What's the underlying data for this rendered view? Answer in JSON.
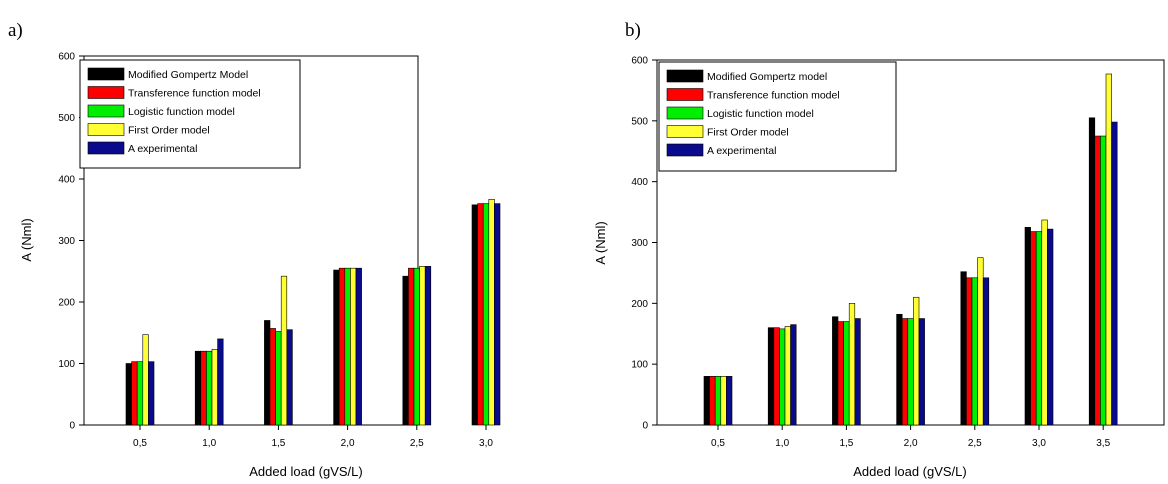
{
  "colors": {
    "series": [
      "#000000",
      "#ff0000",
      "#00ee00",
      "#ffff33",
      "#0a0a8c"
    ],
    "bar_stroke": "#000000"
  },
  "chart_data": [
    {
      "panel_label": "a)",
      "type": "bar",
      "xlabel": "Added load (gVS/L)",
      "ylabel": "A (Nml)",
      "ylim": [
        0,
        600
      ],
      "yticks": [
        0,
        100,
        200,
        300,
        400,
        500,
        600
      ],
      "ytick_labels": [
        "0",
        "100",
        "200",
        "300",
        "400",
        "500",
        "600"
      ],
      "categories": [
        "0,5",
        "1,0",
        "1,5",
        "2,0",
        "2,5",
        "3,0"
      ],
      "legend_position": "top-left",
      "grid": false,
      "series": [
        {
          "name": "Modified Gompertz Model",
          "values": [
            100,
            120,
            170,
            252,
            242,
            358
          ]
        },
        {
          "name": "Transference function model",
          "values": [
            103,
            120,
            157,
            255,
            255,
            360
          ]
        },
        {
          "name": "Logistic function model",
          "values": [
            103,
            120,
            152,
            255,
            255,
            360
          ]
        },
        {
          "name": "First Order model",
          "values": [
            147,
            123,
            242,
            255,
            258,
            367
          ]
        },
        {
          "name": "A experimental",
          "values": [
            103,
            140,
            155,
            255,
            258,
            360
          ]
        }
      ]
    },
    {
      "panel_label": "b)",
      "type": "bar",
      "xlabel": "Added load (gVS/L)",
      "ylabel": "A (Nml)",
      "ylim": [
        0,
        600
      ],
      "yticks": [
        0,
        100,
        200,
        300,
        400,
        500,
        600
      ],
      "ytick_labels": [
        "0",
        "100",
        "200",
        "300",
        "400",
        "500",
        "600"
      ],
      "categories": [
        "0,5",
        "1,0",
        "1,5",
        "2,0",
        "2,5",
        "3,0",
        "3,5"
      ],
      "legend_position": "top-left",
      "grid": false,
      "series": [
        {
          "name": "Modified Gompertz model",
          "values": [
            80,
            160,
            178,
            182,
            252,
            325,
            505
          ]
        },
        {
          "name": "Transference function model",
          "values": [
            80,
            160,
            170,
            175,
            242,
            318,
            475
          ]
        },
        {
          "name": "Logistic function model",
          "values": [
            80,
            158,
            170,
            175,
            242,
            318,
            475
          ]
        },
        {
          "name": "First Order model",
          "values": [
            80,
            162,
            200,
            210,
            275,
            337,
            577
          ]
        },
        {
          "name": "A experimental",
          "values": [
            80,
            165,
            175,
            175,
            242,
            322,
            498
          ]
        }
      ]
    }
  ]
}
